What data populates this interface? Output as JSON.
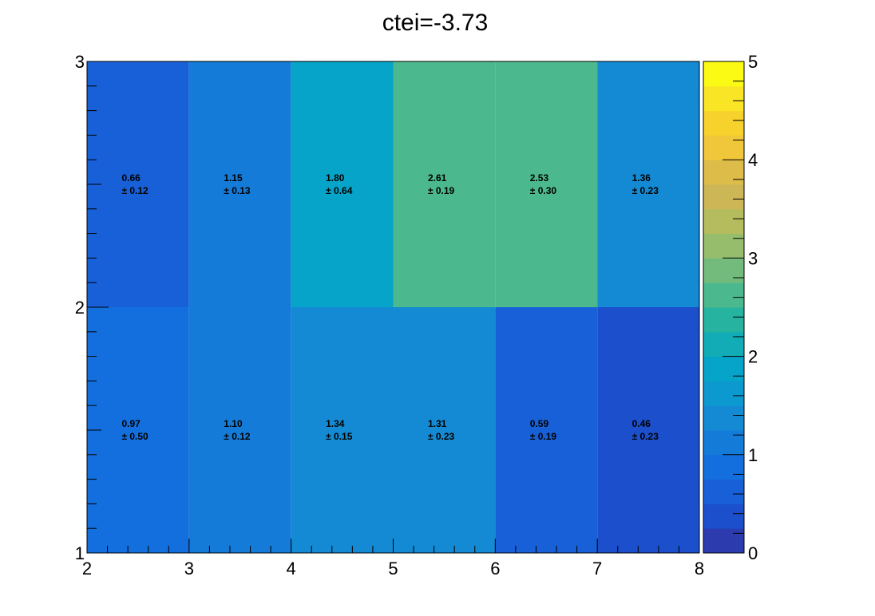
{
  "chart_data": {
    "type": "heatmap",
    "title": "ctei=-3.73",
    "xlabel": "",
    "ylabel": "",
    "x_edges": [
      2,
      3,
      4,
      5,
      6,
      7,
      8
    ],
    "y_edges": [
      1,
      2,
      3
    ],
    "xlim": [
      2,
      8
    ],
    "ylim": [
      1,
      3
    ],
    "z_range": [
      0,
      5
    ],
    "x_ticks": [
      "2",
      "3",
      "4",
      "5",
      "6",
      "7",
      "8"
    ],
    "y_ticks": [
      "1",
      "2",
      "3"
    ],
    "z_ticks": [
      "0",
      "1",
      "2",
      "3",
      "4",
      "5"
    ],
    "rows": [
      {
        "y_low": 1,
        "y_high": 2,
        "values": [
          0.97,
          1.1,
          1.34,
          1.31,
          0.59,
          0.46
        ],
        "value_labels": [
          "0.97",
          "1.10",
          "1.34",
          "1.31",
          "0.59",
          "0.46"
        ],
        "error_labels": [
          "± 0.50",
          "± 0.12",
          "± 0.15",
          "± 0.23",
          "± 0.19",
          "± 0.23"
        ]
      },
      {
        "y_low": 2,
        "y_high": 3,
        "values": [
          0.66,
          1.15,
          1.8,
          2.61,
          2.53,
          1.36
        ],
        "value_labels": [
          "0.66",
          "1.15",
          "1.80",
          "2.61",
          "2.53",
          "1.36"
        ],
        "error_labels": [
          "± 0.12",
          "± 0.13",
          "± 0.64",
          "± 0.19",
          "± 0.30",
          "± 0.23"
        ]
      }
    ],
    "palette": [
      "#2c3bae",
      "#1b4fcc",
      "#1860d8",
      "#136fdd",
      "#147bd8",
      "#138ad3",
      "#0c99d0",
      "#06a4c8",
      "#11acb5",
      "#26b3a0",
      "#4bb98d",
      "#72bb7c",
      "#95bd6c",
      "#b5bc5e",
      "#ccb655",
      "#ddbc4a",
      "#f0c63b",
      "#f8d22c",
      "#f9e525",
      "#fafa15"
    ],
    "grid": false,
    "legend": "none",
    "colorbar": "right"
  }
}
